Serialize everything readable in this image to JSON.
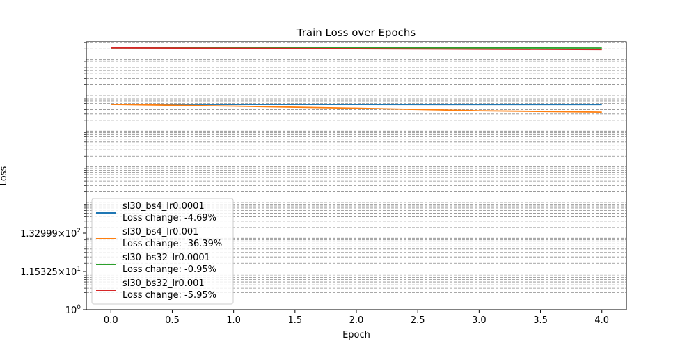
{
  "chart_data": {
    "type": "line",
    "title": "Train Loss over Epochs",
    "xlabel": "Epoch",
    "ylabel": "Loss",
    "x": [
      0,
      1,
      2,
      3,
      4
    ],
    "xlim": [
      -0.2,
      4.2
    ],
    "x_ticks": [
      "0.0",
      "0.5",
      "1.0",
      "1.5",
      "2.0",
      "2.5",
      "3.0",
      "3.5",
      "4.0"
    ],
    "y_scale": "log",
    "y_ticks": [
      {
        "base": "1.32999",
        "exp": "2"
      },
      {
        "base": "1.15325",
        "exp": "1"
      },
      {
        "base": "1",
        "exp": "0"
      }
    ],
    "grid": true,
    "legend_position": "lower-left",
    "series": [
      {
        "name": "sl30_bs4_lr0.0001",
        "change_label": "Loss change: -4.69%",
        "color": "#1f77b4",
        "rel": [
          0.7663,
          0.7661,
          0.7659,
          0.7657,
          0.7655
        ]
      },
      {
        "name": "sl30_bs4_lr0.001",
        "change_label": "Loss change: -36.39%",
        "color": "#ff7f0e",
        "rel": [
          0.7663,
          0.7597,
          0.7519,
          0.7426,
          0.7374
        ]
      },
      {
        "name": "sl30_bs32_lr0.0001",
        "change_label": "Loss change: -0.95%",
        "color": "#2ca02c",
        "rel": [
          0.9771,
          0.977,
          0.9769,
          0.9768,
          0.9767
        ]
      },
      {
        "name": "sl30_bs32_lr0.001",
        "change_label": "Loss change: -5.95%",
        "color": "#d62728",
        "rel": [
          0.9771,
          0.9756,
          0.9739,
          0.9722,
          0.9709
        ]
      }
    ]
  }
}
